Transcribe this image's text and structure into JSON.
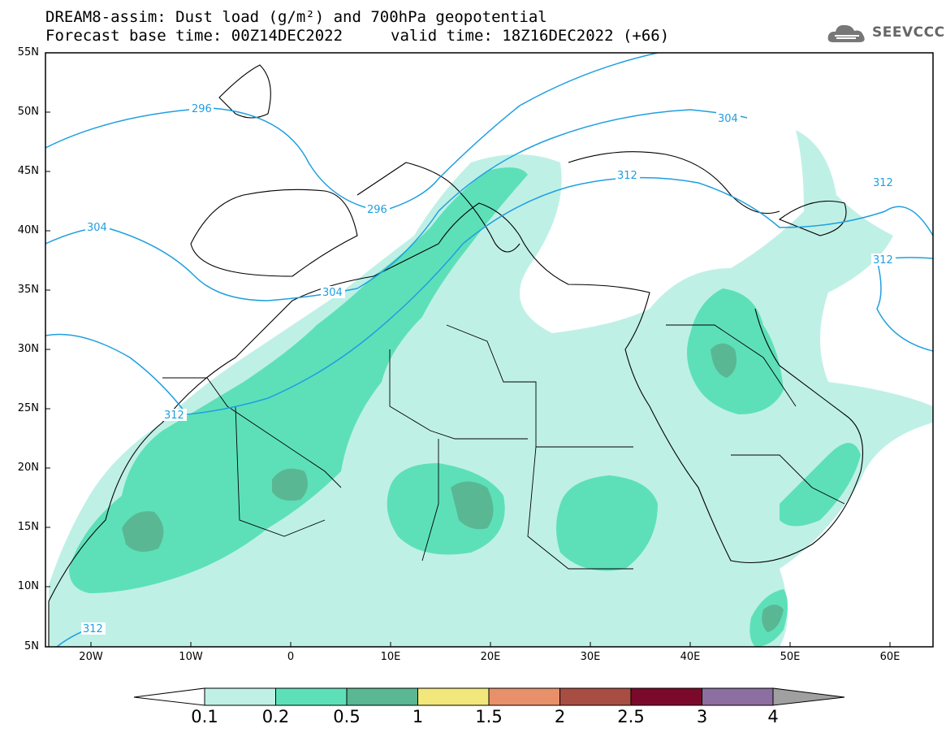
{
  "header": {
    "title_line1": "DREAM8-assim: Dust load (g/m²) and 700hPa geopotential",
    "forecast_label": "Forecast base time: 00Z14DEC2022",
    "valid_label": "valid time: 18Z16DEC2022 (+66)",
    "logo_text": "SEEVCCC"
  },
  "map": {
    "lat_ticks": [
      "55N",
      "50N",
      "45N",
      "40N",
      "35N",
      "30N",
      "25N",
      "20N",
      "15N",
      "10N",
      "5N"
    ],
    "lon_ticks": [
      "20W",
      "10W",
      "0",
      "10E",
      "20E",
      "30E",
      "40E",
      "50E",
      "60E"
    ],
    "contour_labels": [
      "296",
      "296",
      "304",
      "304",
      "304",
      "312",
      "312",
      "312",
      "312",
      "312"
    ]
  },
  "colorbar": {
    "labels": [
      "0.1",
      "0.2",
      "0.5",
      "1",
      "1.5",
      "2",
      "2.5",
      "3",
      "4"
    ],
    "colors": [
      "#bff0e6",
      "#5de0b8",
      "#5ab794",
      "#f2e77a",
      "#e8906a",
      "#a84d42",
      "#7b0a2a",
      "#8c6ea0",
      "#a0a0a0"
    ]
  },
  "colors": {
    "contour": "#1f9fe0",
    "dust_low": "#bff0e6",
    "dust_mid": "#5de0b8",
    "dust_high": "#5ab794"
  }
}
